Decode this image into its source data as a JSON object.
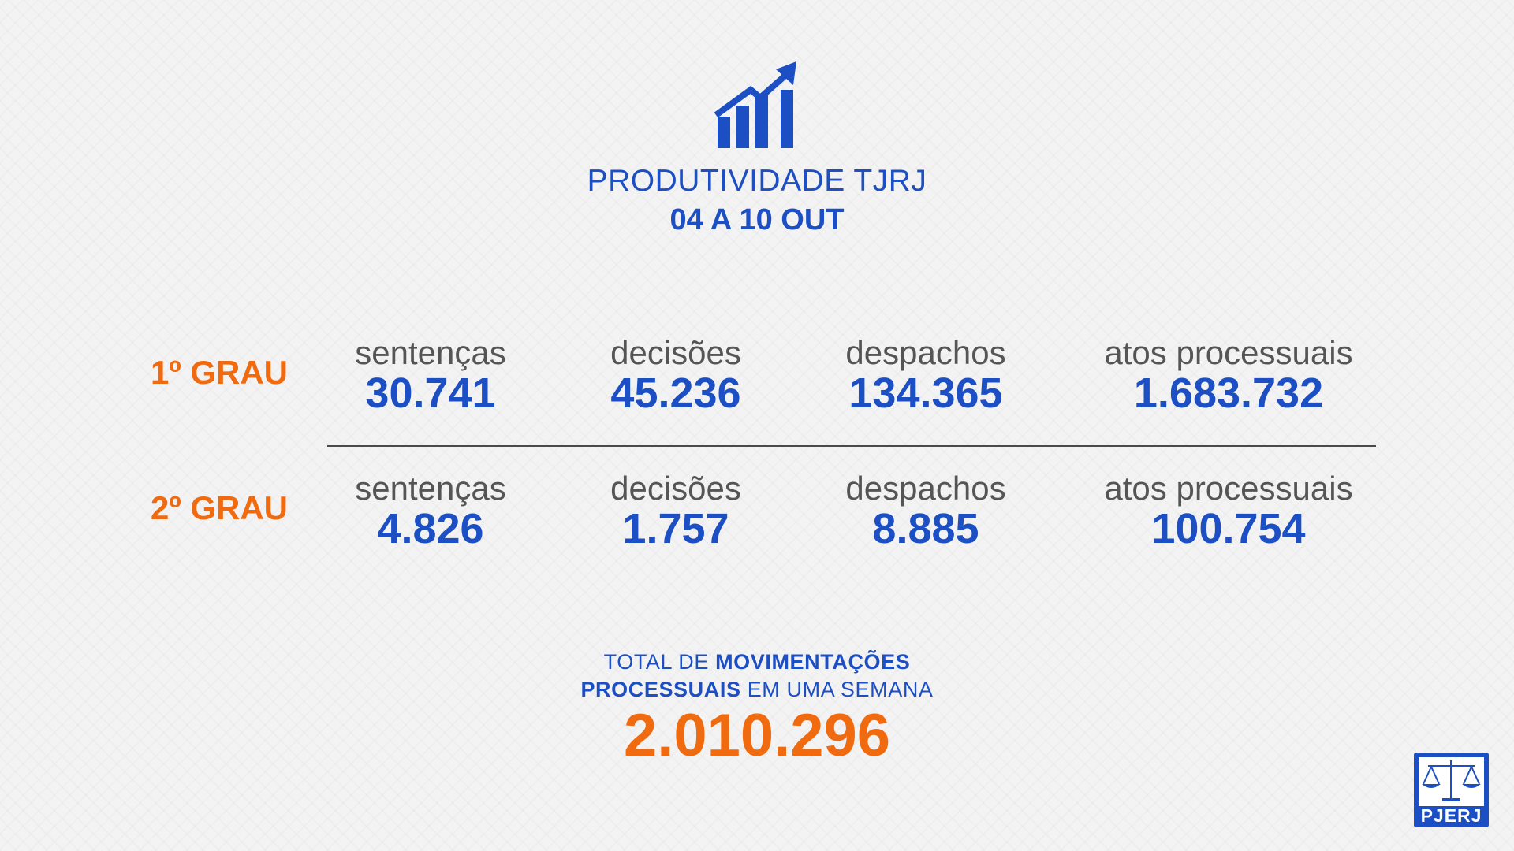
{
  "header": {
    "title": "PRODUTIVIDADE TJRJ",
    "date_range": "04 A 10 OUT"
  },
  "rows": [
    {
      "label": "1º GRAU",
      "stats": [
        {
          "label": "sentenças",
          "value": "30.741"
        },
        {
          "label": "decisões",
          "value": "45.236"
        },
        {
          "label": "despachos",
          "value": "134.365"
        },
        {
          "label": "atos processuais",
          "value": "1.683.732"
        }
      ]
    },
    {
      "label": "2º GRAU",
      "stats": [
        {
          "label": "sentenças",
          "value": "4.826"
        },
        {
          "label": "decisões",
          "value": "1.757"
        },
        {
          "label": "despachos",
          "value": "8.885"
        },
        {
          "label": "atos processuais",
          "value": "100.754"
        }
      ]
    }
  ],
  "total": {
    "line1_regular": "TOTAL DE",
    "line1_bold": "MOVIMENTAÇÕES",
    "line2_bold": "PROCESSUAIS",
    "line2_regular": "EM UMA SEMANA",
    "value": "2.010.296"
  },
  "logo": {
    "text": "PJERJ"
  },
  "colors": {
    "blue": "#1d4fc4",
    "orange": "#f06a10",
    "gray_text": "#555555",
    "background": "#f3f3f3"
  },
  "icons": [
    "growth-chart-icon",
    "scales-of-justice-icon"
  ]
}
